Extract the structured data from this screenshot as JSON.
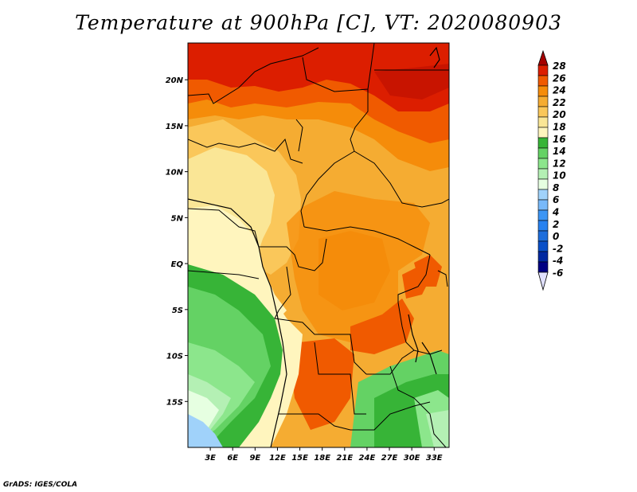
{
  "title": "Temperature at 900hPa [C], VT: 2020080903",
  "credit": "GrADS: IGES/COLA",
  "map": {
    "lon_range": [
      0,
      35
    ],
    "lat_range": [
      -20,
      24
    ],
    "lat_ticks": [
      {
        "value": 20,
        "label": "20N"
      },
      {
        "value": 15,
        "label": "15N"
      },
      {
        "value": 10,
        "label": "10N"
      },
      {
        "value": 5,
        "label": "5N"
      },
      {
        "value": 0,
        "label": "EQ"
      },
      {
        "value": -5,
        "label": "5S"
      },
      {
        "value": -10,
        "label": "10S"
      },
      {
        "value": -15,
        "label": "15S"
      }
    ],
    "lon_ticks": [
      {
        "value": 3,
        "label": "3E"
      },
      {
        "value": 6,
        "label": "6E"
      },
      {
        "value": 9,
        "label": "9E"
      },
      {
        "value": 12,
        "label": "12E"
      },
      {
        "value": 15,
        "label": "15E"
      },
      {
        "value": 18,
        "label": "18E"
      },
      {
        "value": 21,
        "label": "21E"
      },
      {
        "value": 24,
        "label": "24E"
      },
      {
        "value": 27,
        "label": "27E"
      },
      {
        "value": 30,
        "label": "30E"
      },
      {
        "value": 33,
        "label": "33E"
      }
    ]
  },
  "colorbar": {
    "levels": [
      "28",
      "26",
      "24",
      "22",
      "20",
      "18",
      "16",
      "14",
      "12",
      "10",
      "8",
      "6",
      "4",
      "2",
      "0",
      "-2",
      "-4",
      "-6"
    ],
    "colors": [
      "#a50000",
      "#dc1e00",
      "#f05a00",
      "#f58c0a",
      "#f5ac32",
      "#fac75a",
      "#fae696",
      "#fff5be",
      "#37b437",
      "#64d264",
      "#8ce68c",
      "#b4f0b4",
      "#e6ffe1",
      "#a0d2fa",
      "#78b9fa",
      "#3c96f5",
      "#2882f0",
      "#1e6edc",
      "#0a50c8",
      "#0028a0",
      "#000082",
      "#e1e1ff"
    ]
  }
}
